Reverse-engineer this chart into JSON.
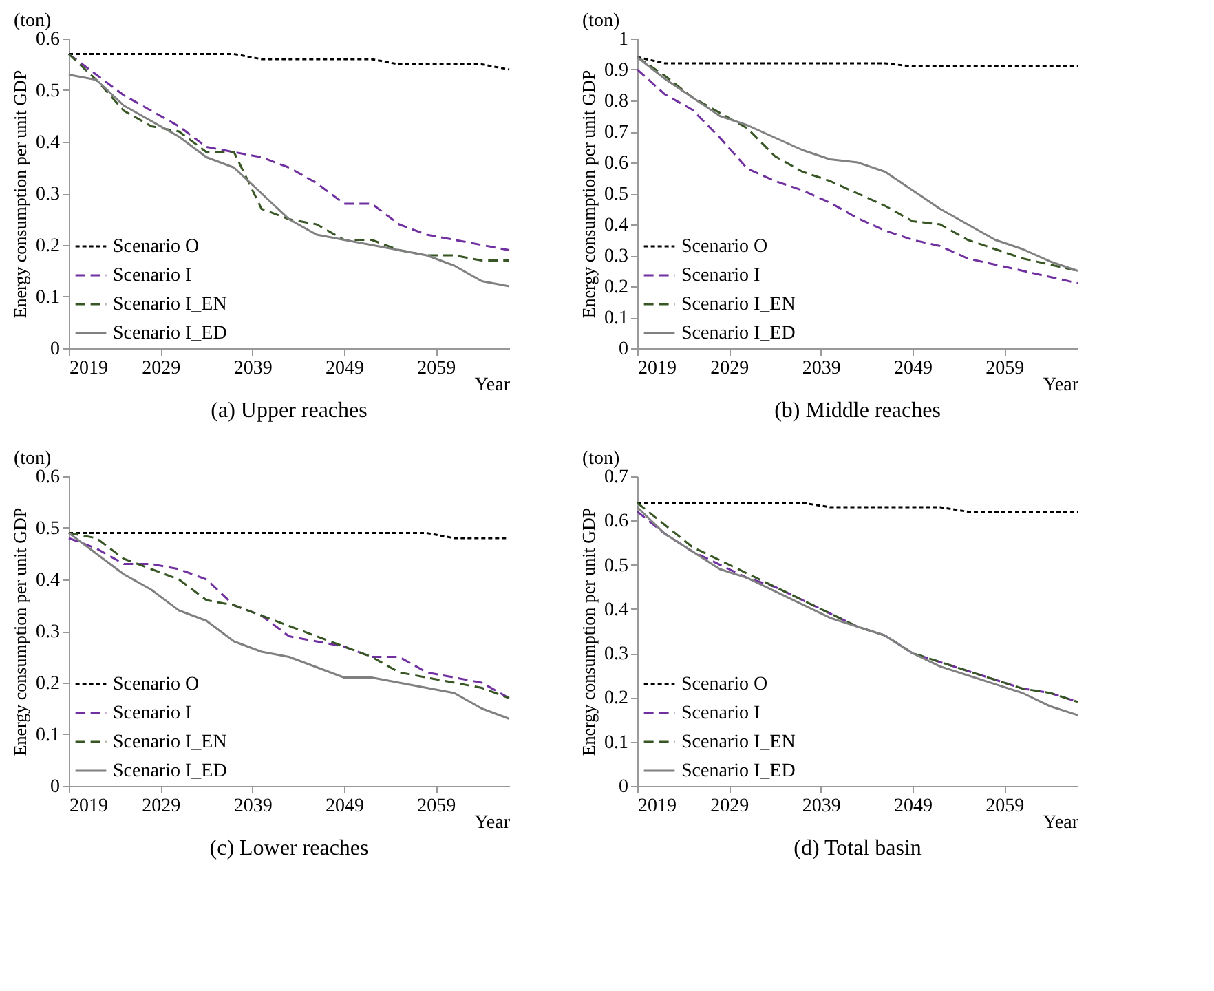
{
  "chart_data": [
    {
      "type": "line",
      "title": "(a) Upper reaches",
      "xlabel": "Year",
      "ylabel": "Energy consumption per unit  GDP",
      "annotations": [
        "(ton)"
      ],
      "legend": "bottom left",
      "grid": false,
      "x": [
        2019,
        2022,
        2025,
        2028,
        2031,
        2034,
        2037,
        2040,
        2043,
        2046,
        2049,
        2052,
        2055,
        2058,
        2061,
        2064,
        2067
      ],
      "xlim": [
        2019,
        2067
      ],
      "xticks": [
        2019,
        2029,
        2039,
        2049,
        2059
      ],
      "ylim": [
        0,
        0.6
      ],
      "yticks": [
        0,
        0.1,
        0.2,
        0.3,
        0.4,
        0.5,
        0.6
      ],
      "series": [
        {
          "name": "Scenario O",
          "color": "#000000",
          "line_style": "dotted",
          "values": [
            0.57,
            0.57,
            0.57,
            0.57,
            0.57,
            0.57,
            0.57,
            0.56,
            0.56,
            0.56,
            0.56,
            0.56,
            0.55,
            0.55,
            0.55,
            0.55,
            0.54
          ]
        },
        {
          "name": "Scenario I",
          "color": "#7030a0",
          "line_style": "dashed",
          "values": [
            0.57,
            0.53,
            0.49,
            0.46,
            0.43,
            0.39,
            0.38,
            0.37,
            0.35,
            0.32,
            0.28,
            0.28,
            0.24,
            0.22,
            0.21,
            0.2,
            0.19
          ]
        },
        {
          "name": "Scenario I_EN",
          "color": "#375623",
          "line_style": "dashed",
          "values": [
            0.57,
            0.52,
            0.46,
            0.43,
            0.42,
            0.38,
            0.38,
            0.27,
            0.25,
            0.24,
            0.21,
            0.21,
            0.19,
            0.18,
            0.18,
            0.17,
            0.17
          ]
        },
        {
          "name": "Scenario I_ED",
          "color": "#808080",
          "line_style": "solid",
          "values": [
            0.53,
            0.52,
            0.47,
            0.44,
            0.41,
            0.37,
            0.35,
            0.3,
            0.25,
            0.22,
            0.21,
            0.2,
            0.19,
            0.18,
            0.16,
            0.13,
            0.12
          ]
        }
      ]
    },
    {
      "type": "line",
      "title": "(b) Middle reaches",
      "xlabel": "Year",
      "ylabel": "Energy consumption per unit  GDP",
      "annotations": [
        "(ton)"
      ],
      "legend": "bottom left",
      "grid": false,
      "x": [
        2019,
        2022,
        2025,
        2028,
        2031,
        2034,
        2037,
        2040,
        2043,
        2046,
        2049,
        2052,
        2055,
        2058,
        2061,
        2064,
        2067
      ],
      "xlim": [
        2019,
        2067
      ],
      "xticks": [
        2019,
        2029,
        2039,
        2049,
        2059
      ],
      "ylim": [
        0,
        1
      ],
      "yticks": [
        0,
        0.1,
        0.2,
        0.3,
        0.4,
        0.5,
        0.6,
        0.7,
        0.8,
        0.9,
        1
      ],
      "series": [
        {
          "name": "Scenario O",
          "color": "#000000",
          "line_style": "dotted",
          "values": [
            0.94,
            0.92,
            0.92,
            0.92,
            0.92,
            0.92,
            0.92,
            0.92,
            0.92,
            0.92,
            0.91,
            0.91,
            0.91,
            0.91,
            0.91,
            0.91,
            0.91
          ]
        },
        {
          "name": "Scenario I",
          "color": "#7030a0",
          "line_style": "dashed",
          "values": [
            0.9,
            0.82,
            0.77,
            0.68,
            0.58,
            0.54,
            0.51,
            0.47,
            0.42,
            0.38,
            0.35,
            0.33,
            0.29,
            0.27,
            0.25,
            0.23,
            0.21
          ]
        },
        {
          "name": "Scenario I_EN",
          "color": "#375623",
          "line_style": "dashed",
          "values": [
            0.94,
            0.88,
            0.81,
            0.76,
            0.71,
            0.62,
            0.57,
            0.54,
            0.5,
            0.46,
            0.41,
            0.4,
            0.35,
            0.32,
            0.29,
            0.27,
            0.25
          ]
        },
        {
          "name": "Scenario I_ED",
          "color": "#808080",
          "line_style": "solid",
          "values": [
            0.94,
            0.87,
            0.81,
            0.75,
            0.72,
            0.68,
            0.64,
            0.61,
            0.6,
            0.57,
            0.51,
            0.45,
            0.4,
            0.35,
            0.32,
            0.28,
            0.25
          ]
        }
      ]
    },
    {
      "type": "line",
      "title": "(c) Lower reaches",
      "xlabel": "Year",
      "ylabel": "Energy consumption per unit  GDP",
      "annotations": [
        "(ton)"
      ],
      "legend": "bottom left",
      "grid": false,
      "x": [
        2019,
        2022,
        2025,
        2028,
        2031,
        2034,
        2037,
        2040,
        2043,
        2046,
        2049,
        2052,
        2055,
        2058,
        2061,
        2064,
        2067
      ],
      "xlim": [
        2019,
        2067
      ],
      "xticks": [
        2019,
        2029,
        2039,
        2049,
        2059
      ],
      "ylim": [
        0,
        0.6
      ],
      "yticks": [
        0,
        0.1,
        0.2,
        0.3,
        0.4,
        0.5,
        0.6
      ],
      "series": [
        {
          "name": "Scenario O",
          "color": "#000000",
          "line_style": "dotted",
          "values": [
            0.49,
            0.49,
            0.49,
            0.49,
            0.49,
            0.49,
            0.49,
            0.49,
            0.49,
            0.49,
            0.49,
            0.49,
            0.49,
            0.49,
            0.48,
            0.48,
            0.48
          ]
        },
        {
          "name": "Scenario I",
          "color": "#7030a0",
          "line_style": "dashed",
          "values": [
            0.48,
            0.46,
            0.43,
            0.43,
            0.42,
            0.4,
            0.35,
            0.33,
            0.29,
            0.28,
            0.27,
            0.25,
            0.25,
            0.22,
            0.21,
            0.2,
            0.17
          ]
        },
        {
          "name": "Scenario I_EN",
          "color": "#375623",
          "line_style": "dashed",
          "values": [
            0.49,
            0.48,
            0.44,
            0.42,
            0.4,
            0.36,
            0.35,
            0.33,
            0.31,
            0.29,
            0.27,
            0.25,
            0.22,
            0.21,
            0.2,
            0.19,
            0.17
          ]
        },
        {
          "name": "Scenario I_ED",
          "color": "#808080",
          "line_style": "solid",
          "values": [
            0.49,
            0.45,
            0.41,
            0.38,
            0.34,
            0.32,
            0.28,
            0.26,
            0.25,
            0.23,
            0.21,
            0.21,
            0.2,
            0.19,
            0.18,
            0.15,
            0.13
          ]
        }
      ]
    },
    {
      "type": "line",
      "title": "(d) Total basin",
      "xlabel": "Year",
      "ylabel": "Energy consumption per unit  GDP",
      "annotations": [
        "(ton)"
      ],
      "legend": "bottom left",
      "grid": false,
      "x": [
        2019,
        2022,
        2025,
        2028,
        2031,
        2034,
        2037,
        2040,
        2043,
        2046,
        2049,
        2052,
        2055,
        2058,
        2061,
        2064,
        2067
      ],
      "xlim": [
        2019,
        2067
      ],
      "xticks": [
        2019,
        2029,
        2039,
        2049,
        2059
      ],
      "ylim": [
        0,
        0.7
      ],
      "yticks": [
        0,
        0.1,
        0.2,
        0.3,
        0.4,
        0.5,
        0.6,
        0.7
      ],
      "series": [
        {
          "name": "Scenario O",
          "color": "#000000",
          "line_style": "dotted",
          "values": [
            0.64,
            0.64,
            0.64,
            0.64,
            0.64,
            0.64,
            0.64,
            0.63,
            0.63,
            0.63,
            0.63,
            0.63,
            0.62,
            0.62,
            0.62,
            0.62,
            0.62
          ]
        },
        {
          "name": "Scenario I",
          "color": "#7030a0",
          "line_style": "dashed",
          "values": [
            0.62,
            0.57,
            0.53,
            0.5,
            0.47,
            0.45,
            0.42,
            0.39,
            0.36,
            0.34,
            0.3,
            0.28,
            0.26,
            0.24,
            0.22,
            0.21,
            0.19
          ]
        },
        {
          "name": "Scenario I_EN",
          "color": "#375623",
          "line_style": "dashed",
          "values": [
            0.64,
            0.59,
            0.54,
            0.51,
            0.48,
            0.45,
            0.42,
            0.39,
            0.36,
            0.34,
            0.3,
            0.28,
            0.26,
            0.24,
            0.22,
            0.21,
            0.19
          ]
        },
        {
          "name": "Scenario I_ED",
          "color": "#808080",
          "line_style": "solid",
          "values": [
            0.63,
            0.57,
            0.53,
            0.49,
            0.47,
            0.44,
            0.41,
            0.38,
            0.36,
            0.34,
            0.3,
            0.27,
            0.25,
            0.23,
            0.21,
            0.18,
            0.16
          ]
        }
      ]
    }
  ]
}
